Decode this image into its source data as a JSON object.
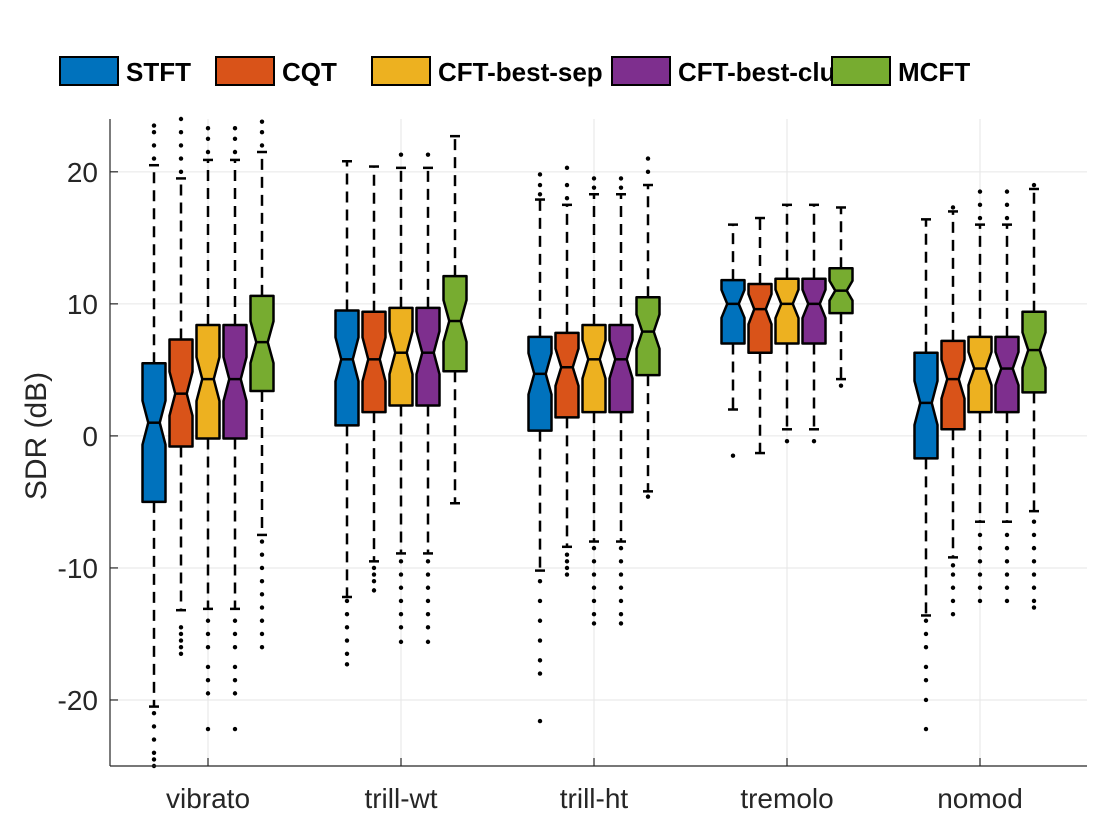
{
  "chart_data": {
    "type": "boxplot",
    "title": "",
    "xlabel": "",
    "ylabel": "SDR (dB)",
    "ylim": [
      -25,
      24
    ],
    "yticks": [
      -20,
      -10,
      0,
      10,
      20
    ],
    "grid": true,
    "notched": true,
    "legend_position": "top",
    "categories": [
      "vibrato",
      "trill-wt",
      "trill-ht",
      "tremolo",
      "nomod"
    ],
    "series": [
      {
        "name": "STFT",
        "color": "#0072BD",
        "stats": [
          {
            "q1": -5,
            "median": 1,
            "q3": 5.5,
            "wlo": -20.5,
            "whi": 20.5,
            "outliers_lo": [
              -21,
              -22,
              -23,
              -24,
              -24.5,
              -25
            ],
            "outliers_hi": [
              21,
              22,
              23,
              23.5
            ]
          },
          {
            "q1": 0.8,
            "median": 5.8,
            "q3": 9.5,
            "wlo": -12.2,
            "whi": 20.8,
            "outliers_lo": [
              -12.5,
              -13.5,
              -14.5,
              -15.5,
              -16.5,
              -17.3
            ],
            "outliers_hi": []
          },
          {
            "q1": 0.4,
            "median": 4.7,
            "q3": 7.5,
            "wlo": -10.2,
            "whi": 17.9,
            "outliers_lo": [
              -11,
              -12.5,
              -14,
              -15.5,
              -17,
              -18,
              -21.6
            ],
            "outliers_hi": [
              18.3,
              19,
              19.8
            ]
          },
          {
            "q1": 7,
            "median": 10,
            "q3": 11.8,
            "wlo": 2,
            "whi": 16,
            "outliers_lo": [
              -1.5
            ],
            "outliers_hi": []
          },
          {
            "q1": -1.7,
            "median": 2.5,
            "q3": 6.3,
            "wlo": -13.6,
            "whi": 16.4,
            "outliers_lo": [
              -14,
              -15,
              -16,
              -17.5,
              -18.5,
              -20,
              -22.2
            ],
            "outliers_hi": []
          }
        ]
      },
      {
        "name": "CQT",
        "color": "#D95319",
        "stats": [
          {
            "q1": -0.8,
            "median": 3.2,
            "q3": 7.3,
            "wlo": -13.2,
            "whi": 19.5,
            "outliers_lo": [
              -14.5,
              -15,
              -15.5,
              -16,
              -16.5
            ],
            "outliers_hi": [
              20,
              21,
              22,
              23,
              24
            ]
          },
          {
            "q1": 1.8,
            "median": 5.8,
            "q3": 9.4,
            "wlo": -9.5,
            "whi": 20.4,
            "outliers_lo": [
              -10,
              -10.5,
              -11,
              -11.7
            ],
            "outliers_hi": []
          },
          {
            "q1": 1.4,
            "median": 5.2,
            "q3": 7.8,
            "wlo": -8.4,
            "whi": 17.5,
            "outliers_lo": [
              -9,
              -9.5,
              -10,
              -10.5
            ],
            "outliers_hi": [
              18,
              19,
              20.3
            ]
          },
          {
            "q1": 6.3,
            "median": 9.6,
            "q3": 11.5,
            "wlo": -1.3,
            "whi": 16.5,
            "outliers_lo": [],
            "outliers_hi": []
          },
          {
            "q1": 0.5,
            "median": 4.3,
            "q3": 7.2,
            "wlo": -9.2,
            "whi": 17,
            "outliers_lo": [
              -9.8,
              -10.5,
              -11.5,
              -12.5,
              -13.5
            ],
            "outliers_hi": [
              17.3
            ]
          }
        ]
      },
      {
        "name": "CFT-best-sep",
        "color": "#EDB120",
        "stats": [
          {
            "q1": -0.2,
            "median": 4.3,
            "q3": 8.4,
            "wlo": -13.1,
            "whi": 20.9,
            "outliers_lo": [
              -14,
              -15,
              -16,
              -17.5,
              -18.5,
              -19.5,
              -22.2
            ],
            "outliers_hi": [
              21.5,
              22.5,
              23.3
            ]
          },
          {
            "q1": 2.3,
            "median": 6.3,
            "q3": 9.7,
            "wlo": -8.9,
            "whi": 20.3,
            "outliers_lo": [
              -9.5,
              -10.5,
              -11.5,
              -12.5,
              -13.5,
              -14.5,
              -15.6
            ],
            "outliers_hi": [
              21.3
            ]
          },
          {
            "q1": 1.8,
            "median": 5.8,
            "q3": 8.4,
            "wlo": -8,
            "whi": 18.3,
            "outliers_lo": [
              -8.5,
              -9.5,
              -10.5,
              -11.5,
              -12.5,
              -13.5,
              -14.2
            ],
            "outliers_hi": [
              18.8,
              19.5
            ]
          },
          {
            "q1": 7,
            "median": 10,
            "q3": 11.9,
            "wlo": 0.5,
            "whi": 17.5,
            "outliers_lo": [
              -0.4
            ],
            "outliers_hi": []
          },
          {
            "q1": 1.8,
            "median": 5.1,
            "q3": 7.5,
            "wlo": -6.5,
            "whi": 16,
            "outliers_lo": [
              -7.5,
              -8.5,
              -9.5,
              -10.5,
              -11.5,
              -12.5
            ],
            "outliers_hi": [
              16.5,
              17.5,
              18.5
            ]
          }
        ]
      },
      {
        "name": "CFT-best-clus",
        "color": "#7E2F8E",
        "stats": [
          {
            "q1": -0.2,
            "median": 4.3,
            "q3": 8.4,
            "wlo": -13.1,
            "whi": 20.9,
            "outliers_lo": [
              -14,
              -15,
              -16,
              -17.5,
              -18.5,
              -19.5,
              -22.2
            ],
            "outliers_hi": [
              21.5,
              22.5,
              23.3
            ]
          },
          {
            "q1": 2.3,
            "median": 6.3,
            "q3": 9.7,
            "wlo": -8.9,
            "whi": 20.3,
            "outliers_lo": [
              -9.5,
              -10.5,
              -11.5,
              -12.5,
              -13.5,
              -14.5,
              -15.6
            ],
            "outliers_hi": [
              21.3
            ]
          },
          {
            "q1": 1.8,
            "median": 5.8,
            "q3": 8.4,
            "wlo": -8,
            "whi": 18.3,
            "outliers_lo": [
              -8.5,
              -9.5,
              -10.5,
              -11.5,
              -12.5,
              -13.5,
              -14.2
            ],
            "outliers_hi": [
              18.8,
              19.5
            ]
          },
          {
            "q1": 7,
            "median": 10,
            "q3": 11.9,
            "wlo": 0.5,
            "whi": 17.5,
            "outliers_lo": [
              -0.4
            ],
            "outliers_hi": []
          },
          {
            "q1": 1.8,
            "median": 5.1,
            "q3": 7.5,
            "wlo": -6.5,
            "whi": 16,
            "outliers_lo": [
              -7.5,
              -8.5,
              -9.5,
              -10.5,
              -11.5,
              -12.5
            ],
            "outliers_hi": [
              16.5,
              17.5,
              18.5
            ]
          }
        ]
      },
      {
        "name": "MCFT",
        "color": "#77AC30",
        "stats": [
          {
            "q1": 3.4,
            "median": 7.1,
            "q3": 10.6,
            "wlo": -7.5,
            "whi": 21.5,
            "outliers_lo": [
              -8,
              -9,
              -10,
              -11,
              -12,
              -13,
              -14,
              -15,
              -16
            ],
            "outliers_hi": [
              22,
              23,
              23.8
            ]
          },
          {
            "q1": 4.9,
            "median": 8.7,
            "q3": 12.1,
            "wlo": -5.1,
            "whi": 22.7,
            "outliers_lo": [],
            "outliers_hi": []
          },
          {
            "q1": 4.6,
            "median": 7.9,
            "q3": 10.5,
            "wlo": -4.2,
            "whi": 19,
            "outliers_lo": [
              -4.6
            ],
            "outliers_hi": [
              20,
              21
            ]
          },
          {
            "q1": 9.3,
            "median": 11,
            "q3": 12.7,
            "wlo": 4.3,
            "whi": 17.3,
            "outliers_lo": [
              3.8
            ],
            "outliers_hi": []
          },
          {
            "q1": 3.3,
            "median": 6.5,
            "q3": 9.4,
            "wlo": -5.7,
            "whi": 18.7,
            "outliers_lo": [
              -6.5,
              -7.5,
              -8.5,
              -9.5,
              -10.5,
              -11.5,
              -12.5,
              -13
            ],
            "outliers_hi": [
              19
            ]
          }
        ]
      }
    ]
  }
}
